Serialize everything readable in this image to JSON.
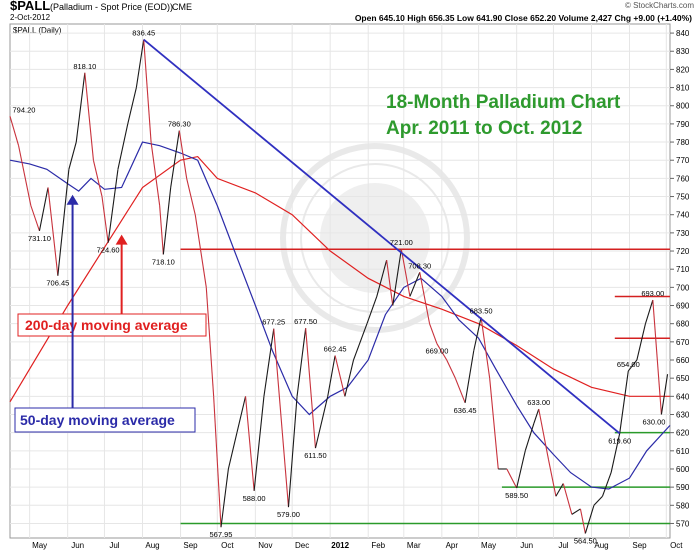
{
  "header": {
    "symbol": "$PALL",
    "description": "(Palladium - Spot Price (EOD))",
    "exchange": "CME",
    "date": "2-Oct-2012",
    "attribution": "© StockCharts.com",
    "ohlc": "Open 645.10  High 656.35  Low 641.90  Close 652.20  Volume 2,427  Chg +9.00 (+1.40%)",
    "panel_label": "$PALL (Daily)"
  },
  "colors": {
    "price": "#1a1a1a",
    "price_down": "#c8323c",
    "ma50": "#2b2ba8",
    "ma200": "#e02020",
    "trend": "#3030c0",
    "resistance": "#d42020",
    "support": "#2a9a2a",
    "title": "#2e9a2e"
  },
  "chart_data": {
    "type": "line",
    "title": "18-Month Palladium Chart",
    "subtitle": "Apr. 2011 to Oct. 2012",
    "ylim": [
      562,
      845
    ],
    "y_ticks": [
      570,
      580,
      590,
      600,
      610,
      620,
      630,
      640,
      650,
      660,
      670,
      680,
      690,
      700,
      710,
      720,
      730,
      740,
      750,
      760,
      770,
      780,
      790,
      800,
      810,
      820,
      830,
      840
    ],
    "x_ticks": [
      "May",
      "Jun",
      "Jul",
      "Aug",
      "Sep",
      "Oct",
      "Nov",
      "Dec",
      "2012",
      "Feb",
      "Mar",
      "Apr",
      "May",
      "Jun",
      "Jul",
      "Aug",
      "Sep",
      "Oct"
    ],
    "x_range": [
      "2011-04-15",
      "2012-10-04"
    ],
    "month_starts": [
      "2011-05-01",
      "2011-06-01",
      "2011-07-01",
      "2011-08-01",
      "2011-09-01",
      "2011-10-01",
      "2011-11-01",
      "2011-12-01",
      "2012-01-01",
      "2012-02-01",
      "2012-03-01",
      "2012-04-01",
      "2012-05-01",
      "2012-06-01",
      "2012-07-01",
      "2012-08-01",
      "2012-09-01",
      "2012-10-01"
    ],
    "series": [
      {
        "name": "$PALL",
        "points": [
          [
            "2011-04-15",
            794.2
          ],
          [
            "2011-04-22",
            778
          ],
          [
            "2011-05-02",
            745
          ],
          [
            "2011-05-09",
            731.1
          ],
          [
            "2011-05-16",
            755
          ],
          [
            "2011-05-24",
            706.45
          ],
          [
            "2011-06-02",
            765
          ],
          [
            "2011-06-08",
            780
          ],
          [
            "2011-06-15",
            818.1
          ],
          [
            "2011-06-22",
            770
          ],
          [
            "2011-06-29",
            750
          ],
          [
            "2011-07-04",
            724.6
          ],
          [
            "2011-07-12",
            765
          ],
          [
            "2011-07-20",
            790
          ],
          [
            "2011-07-27",
            810
          ],
          [
            "2011-08-02",
            836.45
          ],
          [
            "2011-08-08",
            780
          ],
          [
            "2011-08-15",
            745
          ],
          [
            "2011-08-18",
            718.1
          ],
          [
            "2011-08-24",
            755
          ],
          [
            "2011-08-31",
            786.3
          ],
          [
            "2011-09-06",
            760
          ],
          [
            "2011-09-13",
            740
          ],
          [
            "2011-09-22",
            700
          ],
          [
            "2011-09-28",
            640
          ],
          [
            "2011-10-04",
            567.95
          ],
          [
            "2011-10-10",
            600
          ],
          [
            "2011-10-17",
            620
          ],
          [
            "2011-10-24",
            640
          ],
          [
            "2011-10-31",
            588
          ],
          [
            "2011-11-08",
            640
          ],
          [
            "2011-11-16",
            677.25
          ],
          [
            "2011-11-23",
            620
          ],
          [
            "2011-11-28",
            579
          ],
          [
            "2011-12-05",
            640
          ],
          [
            "2011-12-12",
            677.5
          ],
          [
            "2011-12-20",
            611.5
          ],
          [
            "2011-12-30",
            640
          ],
          [
            "2012-01-05",
            662.45
          ],
          [
            "2012-01-13",
            640
          ],
          [
            "2012-01-20",
            660
          ],
          [
            "2012-01-31",
            680
          ],
          [
            "2012-02-08",
            695
          ],
          [
            "2012-02-16",
            715
          ],
          [
            "2012-02-21",
            690
          ],
          [
            "2012-02-28",
            721
          ],
          [
            "2012-03-06",
            695
          ],
          [
            "2012-03-14",
            708.3
          ],
          [
            "2012-03-22",
            680
          ],
          [
            "2012-03-28",
            669
          ],
          [
            "2012-04-05",
            660
          ],
          [
            "2012-04-12",
            650
          ],
          [
            "2012-04-20",
            636.45
          ],
          [
            "2012-04-27",
            665
          ],
          [
            "2012-05-03",
            683.5
          ],
          [
            "2012-05-10",
            650
          ],
          [
            "2012-05-17",
            600
          ],
          [
            "2012-05-24",
            600
          ],
          [
            "2012-06-01",
            589.5
          ],
          [
            "2012-06-08",
            610
          ],
          [
            "2012-06-15",
            625
          ],
          [
            "2012-06-19",
            633
          ],
          [
            "2012-06-27",
            605
          ],
          [
            "2012-07-03",
            585
          ],
          [
            "2012-07-09",
            592
          ],
          [
            "2012-07-16",
            575
          ],
          [
            "2012-07-23",
            578
          ],
          [
            "2012-07-27",
            564.5
          ],
          [
            "2012-08-03",
            580
          ],
          [
            "2012-08-10",
            585
          ],
          [
            "2012-08-17",
            598
          ],
          [
            "2012-08-24",
            619.6
          ],
          [
            "2012-08-31",
            654
          ],
          [
            "2012-09-07",
            660
          ],
          [
            "2012-09-14",
            680
          ],
          [
            "2012-09-20",
            693
          ],
          [
            "2012-09-27",
            630
          ],
          [
            "2012-10-02",
            652.2
          ]
        ]
      },
      {
        "name": "50-day moving average",
        "points": [
          [
            "2011-04-15",
            770
          ],
          [
            "2011-05-01",
            768
          ],
          [
            "2011-05-15",
            765
          ],
          [
            "2011-06-01",
            757
          ],
          [
            "2011-06-10",
            753
          ],
          [
            "2011-06-20",
            760
          ],
          [
            "2011-07-01",
            754
          ],
          [
            "2011-07-15",
            755
          ],
          [
            "2011-08-01",
            780
          ],
          [
            "2011-08-15",
            778
          ],
          [
            "2011-09-01",
            774
          ],
          [
            "2011-09-15",
            770
          ],
          [
            "2011-10-01",
            745
          ],
          [
            "2011-10-15",
            720
          ],
          [
            "2011-11-01",
            690
          ],
          [
            "2011-11-15",
            665
          ],
          [
            "2011-12-01",
            640
          ],
          [
            "2011-12-15",
            630
          ],
          [
            "2012-01-01",
            640
          ],
          [
            "2012-01-15",
            645
          ],
          [
            "2012-02-01",
            660
          ],
          [
            "2012-02-15",
            685
          ],
          [
            "2012-03-01",
            700
          ],
          [
            "2012-03-15",
            705
          ],
          [
            "2012-04-01",
            695
          ],
          [
            "2012-04-15",
            682
          ],
          [
            "2012-05-01",
            672
          ],
          [
            "2012-05-15",
            655
          ],
          [
            "2012-06-01",
            635
          ],
          [
            "2012-06-15",
            620
          ],
          [
            "2012-07-01",
            608
          ],
          [
            "2012-07-15",
            598
          ],
          [
            "2012-08-01",
            590
          ],
          [
            "2012-08-15",
            589
          ],
          [
            "2012-09-01",
            595
          ],
          [
            "2012-09-15",
            610
          ],
          [
            "2012-10-04",
            624
          ]
        ]
      },
      {
        "name": "200-day moving average",
        "points": [
          [
            "2011-04-15",
            637
          ],
          [
            "2011-05-01",
            655
          ],
          [
            "2011-06-01",
            690
          ],
          [
            "2011-07-01",
            722
          ],
          [
            "2011-08-01",
            755
          ],
          [
            "2011-09-01",
            770
          ],
          [
            "2011-09-15",
            772
          ],
          [
            "2011-10-01",
            760
          ],
          [
            "2011-11-01",
            752
          ],
          [
            "2011-12-01",
            740
          ],
          [
            "2012-01-01",
            720
          ],
          [
            "2012-02-01",
            705
          ],
          [
            "2012-03-01",
            695
          ],
          [
            "2012-04-01",
            688
          ],
          [
            "2012-05-01",
            680
          ],
          [
            "2012-06-01",
            668
          ],
          [
            "2012-07-01",
            655
          ],
          [
            "2012-08-01",
            645
          ],
          [
            "2012-09-01",
            640
          ],
          [
            "2012-10-04",
            640
          ]
        ]
      }
    ],
    "price_labels": [
      {
        "text": "794.20",
        "date": "2011-04-15",
        "value": 794.2,
        "pos": "above"
      },
      {
        "text": "731.10",
        "date": "2011-05-09",
        "value": 731.1,
        "pos": "below"
      },
      {
        "text": "706.45",
        "date": "2011-05-24",
        "value": 706.45,
        "pos": "below"
      },
      {
        "text": "818.10",
        "date": "2011-06-15",
        "value": 818.1,
        "pos": "above"
      },
      {
        "text": "724.60",
        "date": "2011-07-04",
        "value": 724.6,
        "pos": "below"
      },
      {
        "text": "836.45",
        "date": "2011-08-02",
        "value": 836.45,
        "pos": "above"
      },
      {
        "text": "718.10",
        "date": "2011-08-18",
        "value": 718.1,
        "pos": "below"
      },
      {
        "text": "786.30",
        "date": "2011-08-31",
        "value": 786.3,
        "pos": "above"
      },
      {
        "text": "567.95",
        "date": "2011-10-04",
        "value": 567.95,
        "pos": "below"
      },
      {
        "text": "588.00",
        "date": "2011-10-31",
        "value": 588,
        "pos": "below"
      },
      {
        "text": "677.25",
        "date": "2011-11-16",
        "value": 677.25,
        "pos": "above"
      },
      {
        "text": "579.00",
        "date": "2011-11-28",
        "value": 579,
        "pos": "below"
      },
      {
        "text": "677.50",
        "date": "2011-12-12",
        "value": 677.5,
        "pos": "above"
      },
      {
        "text": "611.50",
        "date": "2011-12-20",
        "value": 611.5,
        "pos": "below"
      },
      {
        "text": "662.45",
        "date": "2012-01-05",
        "value": 662.45,
        "pos": "above"
      },
      {
        "text": "721.00",
        "date": "2012-02-28",
        "value": 721,
        "pos": "above"
      },
      {
        "text": "708.30",
        "date": "2012-03-14",
        "value": 708.3,
        "pos": "above"
      },
      {
        "text": "669.00",
        "date": "2012-03-28",
        "value": 669,
        "pos": "below"
      },
      {
        "text": "636.45",
        "date": "2012-04-20",
        "value": 636.45,
        "pos": "below"
      },
      {
        "text": "683.50",
        "date": "2012-05-03",
        "value": 683.5,
        "pos": "above"
      },
      {
        "text": "589.50",
        "date": "2012-06-01",
        "value": 589.5,
        "pos": "below"
      },
      {
        "text": "633.00",
        "date": "2012-06-19",
        "value": 633,
        "pos": "above"
      },
      {
        "text": "564.50",
        "date": "2012-07-27",
        "value": 564.5,
        "pos": "below"
      },
      {
        "text": "619.60",
        "date": "2012-08-24",
        "value": 619.6,
        "pos": "below"
      },
      {
        "text": "654.00",
        "date": "2012-08-31",
        "value": 654,
        "pos": "above"
      },
      {
        "text": "693.00",
        "date": "2012-09-20",
        "value": 693,
        "pos": "above"
      },
      {
        "text": "630.00",
        "date": "2012-09-27",
        "value": 630,
        "pos": "below"
      }
    ],
    "trendline": {
      "from": [
        "2011-08-02",
        836.45
      ],
      "to": [
        "2012-08-24",
        619.6
      ]
    },
    "resistance_lines": [
      {
        "value": 721,
        "from": "2011-09-01",
        "to": "2012-10-04"
      },
      {
        "value": 695,
        "from": "2012-08-20",
        "to": "2012-10-04"
      },
      {
        "value": 672,
        "from": "2012-08-20",
        "to": "2012-10-04"
      }
    ],
    "support_lines": [
      {
        "value": 570,
        "from": "2011-09-01",
        "to": "2012-10-04"
      },
      {
        "value": 590,
        "from": "2012-05-20",
        "to": "2012-10-04"
      },
      {
        "value": 620,
        "from": "2012-08-20",
        "to": "2012-10-04"
      }
    ],
    "annotations": [
      {
        "id": "ma200",
        "text": "200-day moving average",
        "arrow_date": "2011-07-15",
        "arrow_value": 729
      },
      {
        "id": "ma50",
        "text": "50-day moving average",
        "arrow_date": "2011-06-05",
        "arrow_value": 751
      }
    ]
  }
}
